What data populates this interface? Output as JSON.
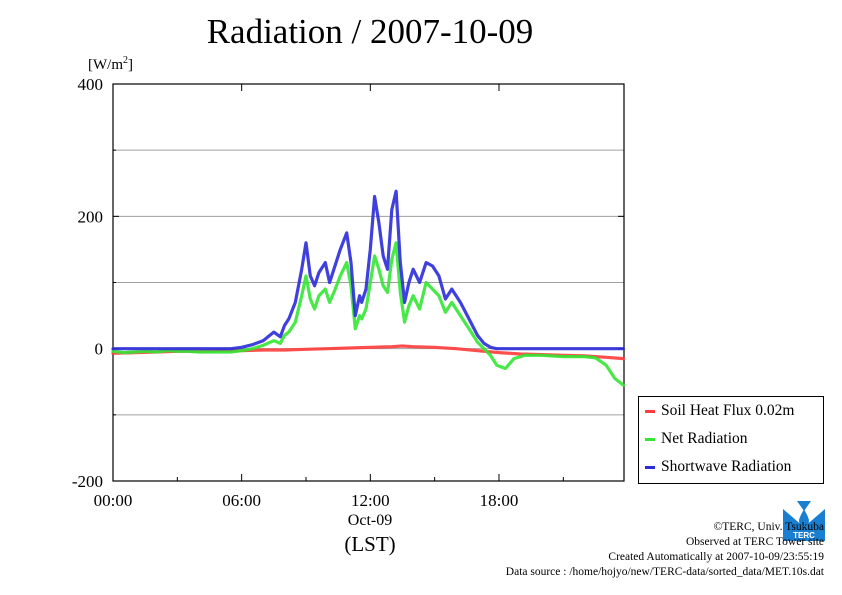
{
  "title": "Radiation / 2007-10-09",
  "unit": {
    "base": "[W/m",
    "sup": "2",
    "close": "]"
  },
  "chart_data": {
    "type": "line",
    "title": "Radiation / 2007-10-09",
    "ylabel": "[W/m2]",
    "xlabel": "(LST)",
    "x_date_label": "Oct-09",
    "ylim": [
      -200,
      400
    ],
    "xlim_hours": [
      0,
      23.83
    ],
    "yticks": [
      400,
      200,
      0,
      -200
    ],
    "ytick_labels": [
      "400",
      "200",
      "0",
      "-200"
    ],
    "xticks_hours": [
      0,
      6,
      12,
      18
    ],
    "xtick_labels": [
      "00:00",
      "06:00",
      "12:00",
      "18:00"
    ],
    "grid": true,
    "legend_position": "bottom-right outside",
    "series": [
      {
        "name": "Soil Heat Flux 0.02m",
        "color": "#ff3b3b",
        "x": [
          0,
          1,
          2,
          3,
          4,
          5,
          6,
          7,
          8,
          9,
          10,
          11,
          12,
          13,
          13.5,
          14,
          15,
          16,
          17,
          18,
          19,
          20,
          21,
          22,
          23,
          23.8
        ],
        "values": [
          -7,
          -6,
          -5,
          -4,
          -4,
          -3,
          -3,
          -2,
          -2,
          -1,
          0,
          1,
          2,
          3,
          4,
          3,
          2,
          0,
          -3,
          -6,
          -8,
          -9,
          -10,
          -11,
          -13,
          -15
        ]
      },
      {
        "name": "Net Radiation",
        "color": "#33e633",
        "x": [
          0,
          0.5,
          1,
          1.5,
          2,
          2.5,
          3,
          3.5,
          4,
          4.5,
          5,
          5.5,
          6,
          6.5,
          7,
          7.5,
          7.8,
          8,
          8.2,
          8.5,
          8.8,
          9,
          9.2,
          9.4,
          9.6,
          9.9,
          10.1,
          10.3,
          10.6,
          10.9,
          11.1,
          11.3,
          11.5,
          11.6,
          11.8,
          12.0,
          12.2,
          12.4,
          12.6,
          12.8,
          13.0,
          13.2,
          13.4,
          13.6,
          13.8,
          14.0,
          14.3,
          14.6,
          14.9,
          15.2,
          15.5,
          15.8,
          16.2,
          16.6,
          17.0,
          17.3,
          17.6,
          17.9,
          18.3,
          18.7,
          19.2,
          20,
          21,
          22,
          22.5,
          23,
          23.4,
          23.8
        ],
        "values": [
          -4,
          -6,
          -5,
          -4,
          -5,
          -3,
          -4,
          -4,
          -5,
          -5,
          -5,
          -5,
          -3,
          0,
          5,
          12,
          8,
          20,
          25,
          40,
          80,
          110,
          75,
          60,
          80,
          90,
          70,
          85,
          110,
          130,
          95,
          30,
          50,
          45,
          60,
          100,
          140,
          120,
          95,
          85,
          135,
          160,
          85,
          40,
          65,
          80,
          60,
          100,
          90,
          80,
          55,
          70,
          50,
          30,
          10,
          0,
          -10,
          -25,
          -30,
          -15,
          -10,
          -10,
          -12,
          -12,
          -14,
          -25,
          -45,
          -55
        ]
      },
      {
        "name": "Shortwave Radiation",
        "color": "#2b2bd9",
        "x": [
          0,
          0.5,
          1,
          1.5,
          2,
          2.5,
          3,
          3.5,
          4,
          4.5,
          5,
          5.5,
          6,
          6.5,
          7,
          7.5,
          7.8,
          8,
          8.2,
          8.5,
          8.8,
          9,
          9.2,
          9.4,
          9.6,
          9.9,
          10.1,
          10.3,
          10.6,
          10.9,
          11.1,
          11.3,
          11.5,
          11.6,
          11.8,
          12.0,
          12.2,
          12.4,
          12.6,
          12.8,
          13.0,
          13.2,
          13.4,
          13.6,
          13.8,
          14.0,
          14.3,
          14.6,
          14.9,
          15.2,
          15.5,
          15.8,
          16.2,
          16.6,
          17.0,
          17.3,
          17.6,
          17.9,
          18.3,
          18.7,
          19.2,
          20,
          21,
          22,
          22.5,
          23,
          23.4,
          23.8
        ],
        "values": [
          0,
          0,
          0,
          0,
          0,
          0,
          0,
          0,
          0,
          0,
          0,
          0,
          2,
          6,
          12,
          25,
          18,
          35,
          45,
          70,
          120,
          160,
          110,
          95,
          115,
          130,
          100,
          120,
          150,
          175,
          130,
          50,
          80,
          70,
          90,
          150,
          230,
          190,
          140,
          120,
          210,
          238,
          130,
          70,
          100,
          120,
          100,
          130,
          125,
          110,
          75,
          90,
          70,
          45,
          20,
          8,
          2,
          0,
          0,
          0,
          0,
          0,
          0,
          0,
          0,
          0,
          0,
          0
        ]
      }
    ]
  },
  "legend": {
    "items": [
      {
        "label": "Soil Heat Flux 0.02m",
        "color": "#ff3b3b"
      },
      {
        "label": "Net Radiation",
        "color": "#33e633"
      },
      {
        "label": "Shortwave Radiation",
        "color": "#2b2bd9"
      }
    ]
  },
  "credits": {
    "line1": "©TERC, Univ. Tsukuba",
    "line2": "Observed at TERC Tower site",
    "line3": "Created Automatically at 2007-10-09/23:55:19",
    "line4": "Data source : /home/hojyo/new/TERC-data/sorted_data/MET.10s.dat"
  },
  "logo": {
    "text": "TERC",
    "color": "#1a7fd1"
  }
}
